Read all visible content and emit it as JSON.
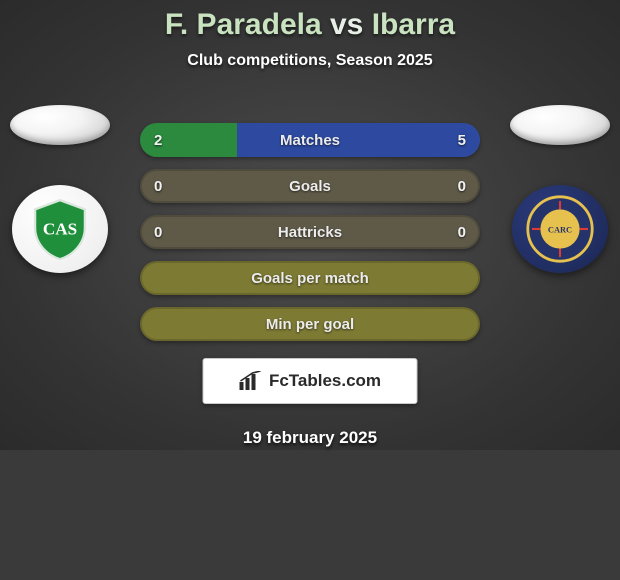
{
  "title_colored": {
    "left": "F. Paradela",
    "mid": " vs ",
    "right": "Ibarra"
  },
  "title_left_color": "#c9e2c0",
  "title_mid_color": "#e7efe7",
  "title_right_color": "#c9e2c0",
  "subtitle": "Club competitions, Season 2025",
  "date": "19 february 2025",
  "brand": "FcTables.com",
  "left_accent": "#2b8a3e",
  "right_accent": "#2d4aa0",
  "pill_neutral": "#5f5a48",
  "pill_olive": "#7d7a34",
  "rows": [
    {
      "label": "Matches",
      "left": "2",
      "right": "5",
      "left_pct": 28.57,
      "right_pct": 71.43
    },
    {
      "label": "Goals",
      "left": "0",
      "right": "0",
      "left_pct": 0,
      "right_pct": 0
    },
    {
      "label": "Hattricks",
      "left": "0",
      "right": "0",
      "left_pct": 0,
      "right_pct": 0
    },
    {
      "label": "Goals per match",
      "left": "",
      "right": "",
      "left_pct": 0,
      "right_pct": 0,
      "olive": true
    },
    {
      "label": "Min per goal",
      "left": "",
      "right": "",
      "left_pct": 0,
      "right_pct": 0,
      "olive": true
    }
  ]
}
